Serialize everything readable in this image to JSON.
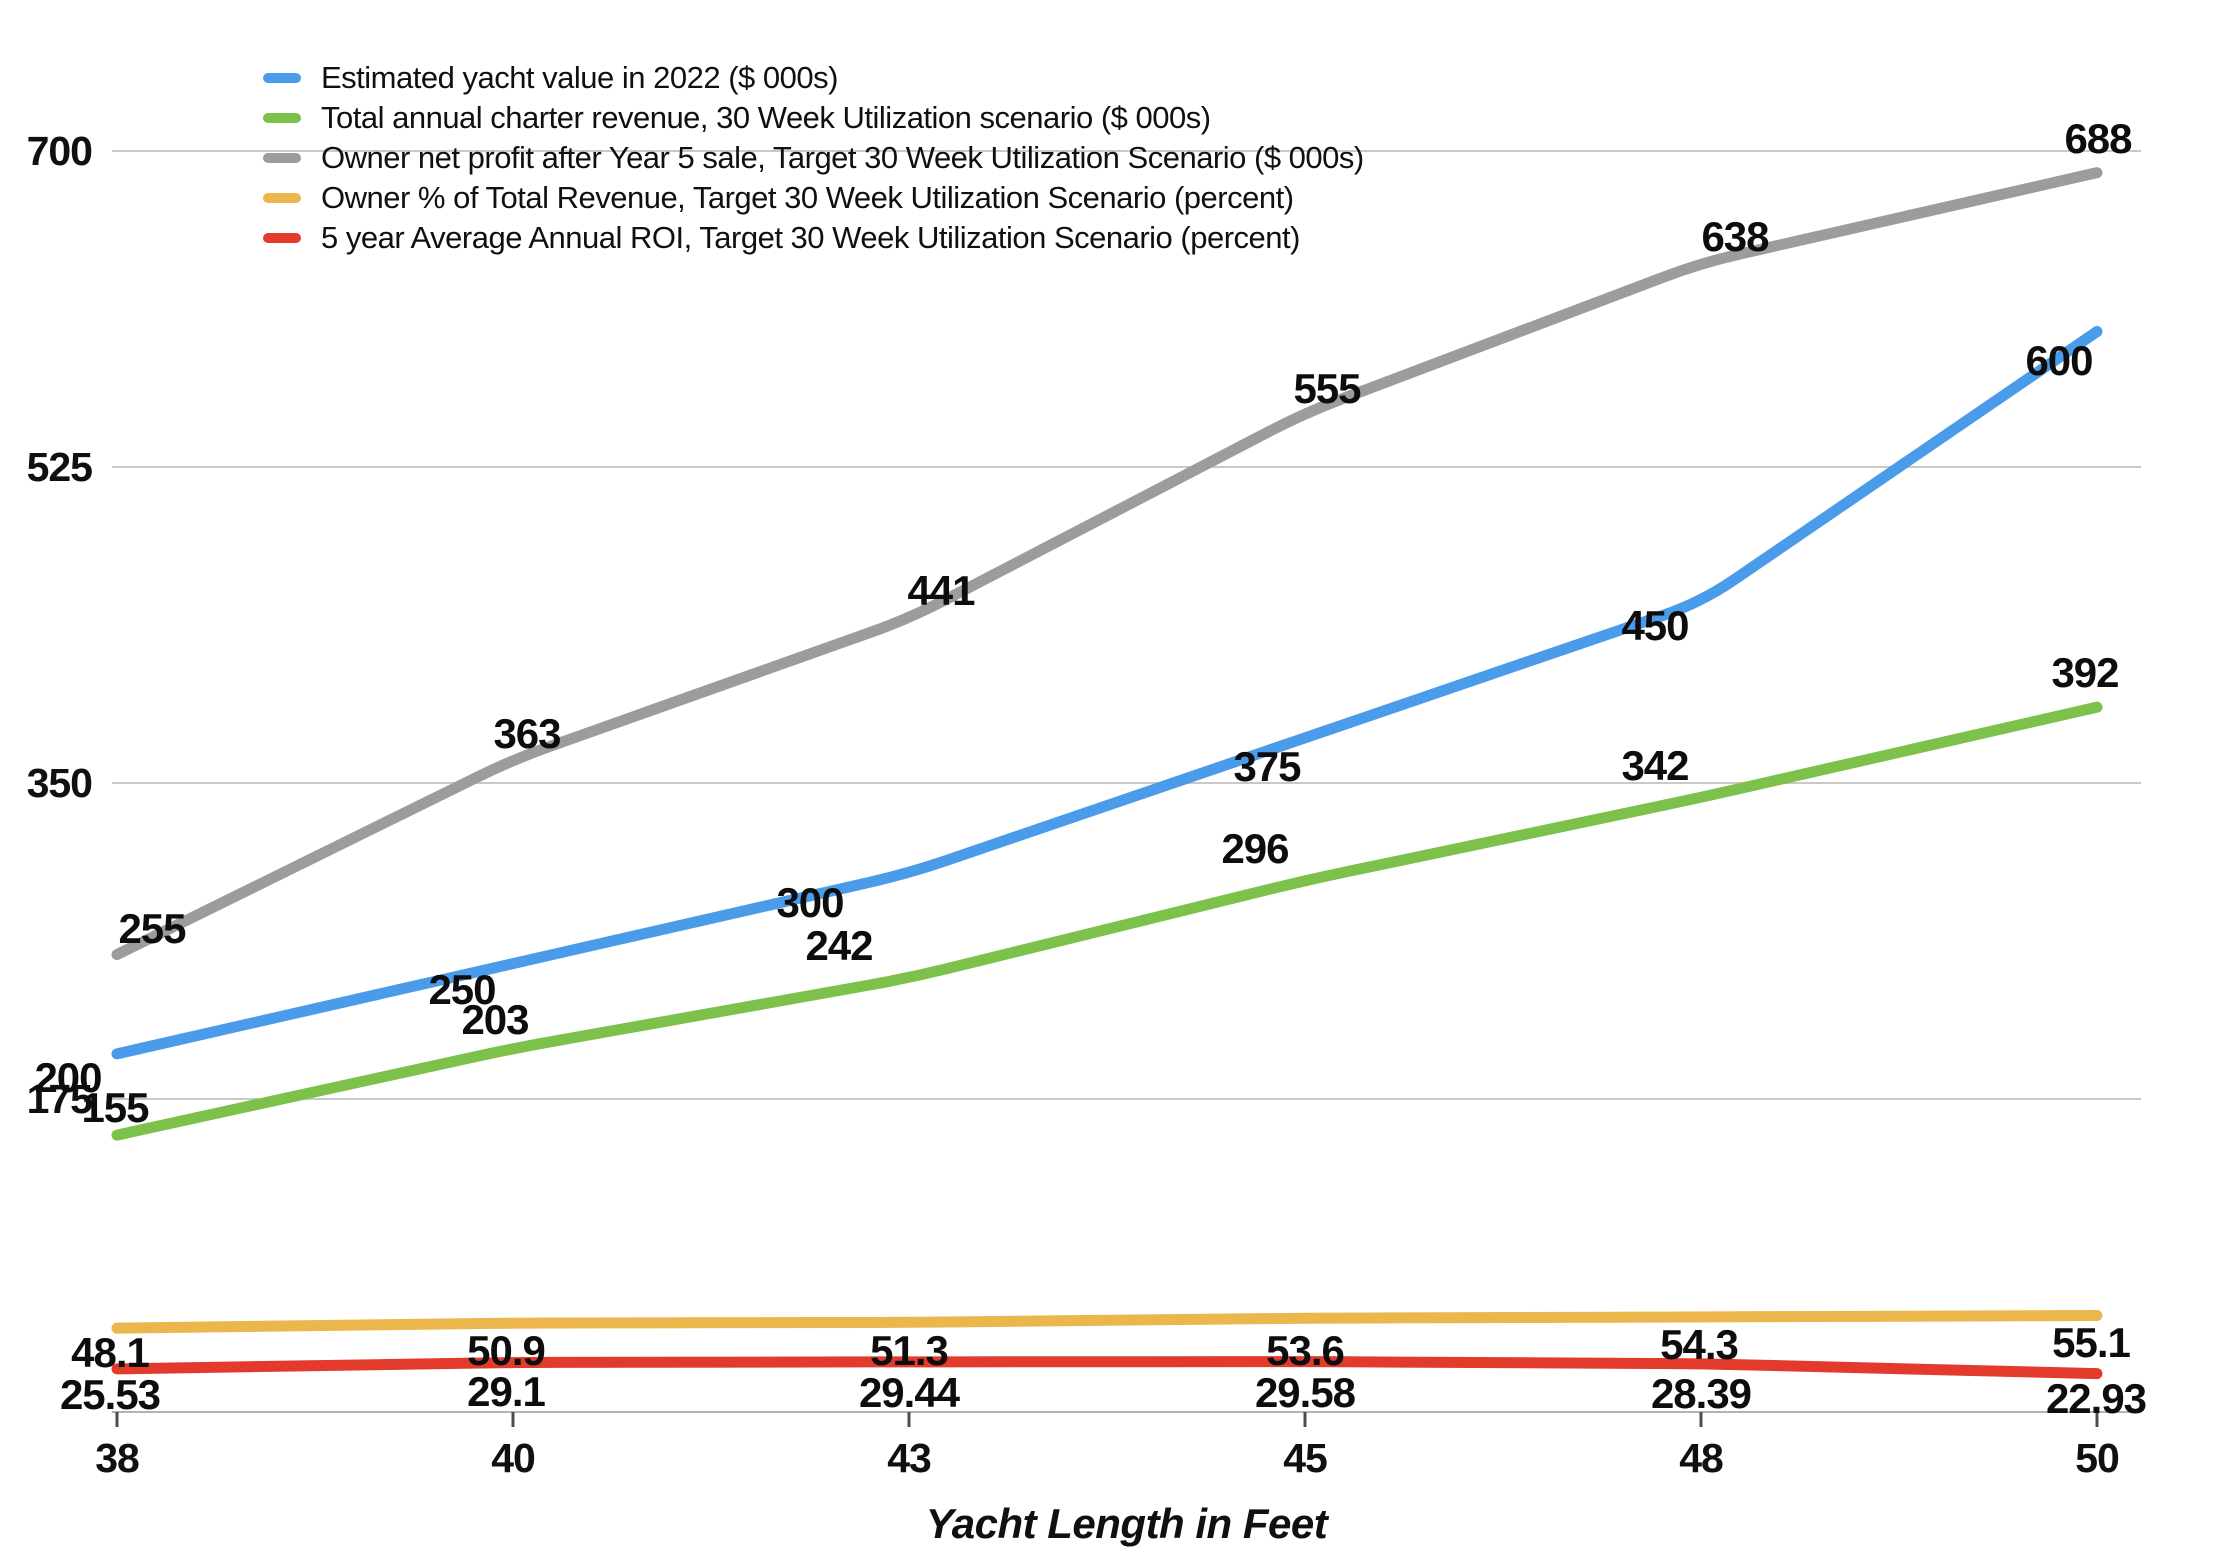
{
  "chart_data": {
    "type": "line",
    "title": "",
    "xlabel": "Yacht Length in Feet",
    "ylabel": "",
    "x_categories": [
      "38",
      "40",
      "43",
      "45",
      "48",
      "50"
    ],
    "y_ticks": [
      175,
      350,
      525,
      700
    ],
    "ylim": [
      0,
      730
    ],
    "grid": "horizontal",
    "legend_position": "top-left",
    "series": [
      {
        "name": "Estimated yacht value in 2022 ($ 000s)",
        "color": "#4A9BEA",
        "values": [
          200,
          250,
          300,
          375,
          450,
          600
        ],
        "labels": [
          "200",
          "250",
          "300",
          "375",
          "450",
          "600"
        ]
      },
      {
        "name": "Total annual charter revenue, 30 Week Utilization scenario ($ 000s)",
        "color": "#7CC24A",
        "values": [
          155,
          203,
          242,
          296,
          342,
          392
        ],
        "labels": [
          "155",
          "203",
          "242",
          "296",
          "342",
          "392"
        ]
      },
      {
        "name": "Owner net profit after Year 5 sale, Target 30 Week Utilization Scenario ($ 000s)",
        "color": "#9C9C9C",
        "values": [
          255,
          363,
          441,
          555,
          638,
          688
        ],
        "labels": [
          "255",
          "363",
          "441",
          "555",
          "638",
          "688"
        ]
      },
      {
        "name": "Owner % of Total Revenue, Target 30 Week Utilization Scenario (percent)",
        "color": "#EBB64C",
        "values": [
          48.1,
          50.9,
          51.3,
          53.6,
          54.3,
          55.1
        ],
        "labels": [
          "48.1",
          "50.9",
          "51.3",
          "53.6",
          "54.3",
          "55.1"
        ]
      },
      {
        "name": "5 year Average Annual ROI, Target 30 Week Utilization Scenario (percent)",
        "color": "#E23B2C",
        "values": [
          25.53,
          29.1,
          29.44,
          29.58,
          28.39,
          22.93
        ],
        "labels": [
          "25.53",
          "29.1",
          "29.44",
          "29.58",
          "28.39",
          "22.93"
        ]
      }
    ]
  }
}
